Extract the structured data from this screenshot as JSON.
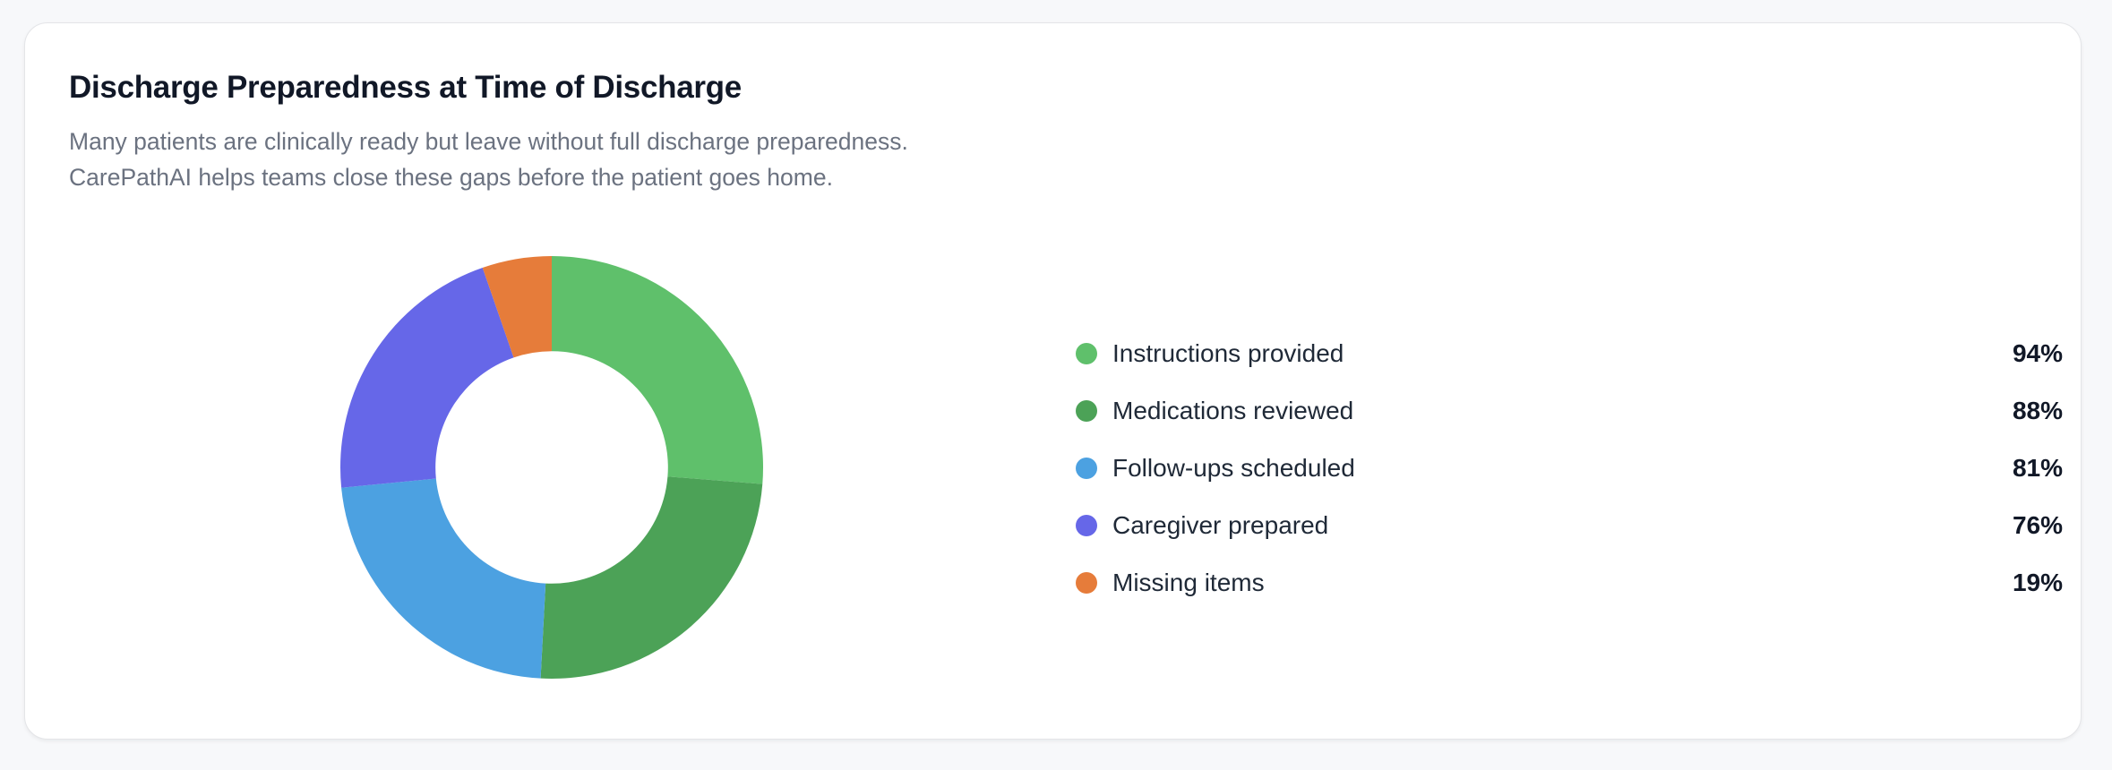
{
  "card": {
    "title": "Discharge Preparedness at Time of Discharge",
    "subtitle_lines": [
      "Many patients are clinically ready but leave without full discharge preparedness.",
      "CarePathAI helps teams close these gaps before the patient goes home."
    ]
  },
  "legend": [
    {
      "label": "Instructions provided",
      "value": "94%",
      "color": "#5fc06b"
    },
    {
      "label": "Medications reviewed",
      "value": "88%",
      "color": "#4ca257"
    },
    {
      "label": "Follow-ups scheduled",
      "value": "81%",
      "color": "#4ca1e1"
    },
    {
      "label": "Caregiver prepared",
      "value": "76%",
      "color": "#6667e8"
    },
    {
      "label": "Missing items",
      "value": "19%",
      "color": "#e67c3a"
    }
  ],
  "chart_data": {
    "type": "pie",
    "variant": "donut",
    "title": "Discharge Preparedness at Time of Discharge",
    "subtitle": "Many patients are clinically ready but leave without full discharge preparedness. CarePathAI helps teams close these gaps before the patient goes home.",
    "categories": [
      "Instructions provided",
      "Medications reviewed",
      "Follow-ups scheduled",
      "Caregiver prepared",
      "Missing items"
    ],
    "values": [
      94,
      88,
      81,
      76,
      19
    ],
    "unit": "%",
    "colors": [
      "#5fc06b",
      "#4ca257",
      "#4ca1e1",
      "#6667e8",
      "#e67c3a"
    ],
    "legend_position": "right",
    "start_angle_deg": 0,
    "direction": "clockwise",
    "inner_radius_ratio": 0.55
  }
}
